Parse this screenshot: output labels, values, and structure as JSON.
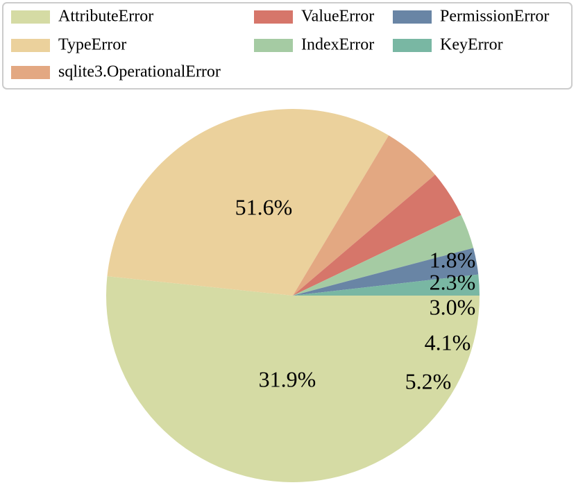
{
  "chart_data": {
    "type": "pie",
    "categories": [
      "AttributeError",
      "TypeError",
      "sqlite3.OperationalError",
      "ValueError",
      "IndexError",
      "PermissionError",
      "KeyError"
    ],
    "values": [
      51.6,
      31.9,
      5.2,
      4.1,
      3.0,
      2.3,
      1.8
    ],
    "labels": [
      "51.6%",
      "31.9%",
      "5.2%",
      "4.1%",
      "3.0%",
      "2.3%",
      "1.8%"
    ],
    "colors": [
      "#d5dba4",
      "#ebd19c",
      "#e3a882",
      "#d6766a",
      "#a5cba3",
      "#6985a5",
      "#79b7a3"
    ],
    "legend_position": "top"
  }
}
